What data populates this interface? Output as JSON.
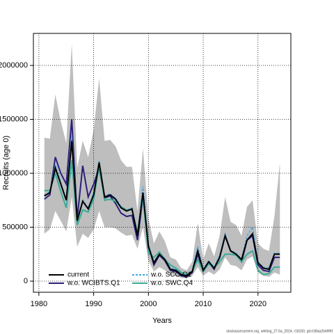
{
  "chart_data": {
    "type": "line",
    "x_label": "Years",
    "y_label": "Recruits (age 0)",
    "footer": "stockassessment.org, whiting_27.6a_2024, r18150, git:e38aa2b49f6f",
    "x": [
      1981,
      1982,
      1983,
      1984,
      1985,
      1986,
      1987,
      1988,
      1989,
      1990,
      1991,
      1992,
      1993,
      1994,
      1995,
      1996,
      1997,
      1998,
      1999,
      2000,
      2001,
      2002,
      2003,
      2004,
      2005,
      2006,
      2007,
      2008,
      2009,
      2010,
      2011,
      2012,
      2013,
      2014,
      2015,
      2016,
      2017,
      2018,
      2019,
      2020,
      2021,
      2022,
      2023,
      2024
    ],
    "band": {
      "color": "#bebebe",
      "upper": [
        1330000,
        1320000,
        1730000,
        1480000,
        1280000,
        2200000,
        1050000,
        1300000,
        1150000,
        1400000,
        1880000,
        1300000,
        1310000,
        1250000,
        1120000,
        1060000,
        1060000,
        650000,
        1230000,
        580000,
        350000,
        460000,
        370000,
        220000,
        200000,
        120000,
        100000,
        180000,
        540000,
        200000,
        350000,
        230000,
        420000,
        780000,
        550000,
        520000,
        420000,
        690000,
        750000,
        350000,
        300000,
        280000,
        600000,
        1100000
      ],
      "lower": [
        440000,
        480000,
        650000,
        560000,
        460000,
        780000,
        320000,
        440000,
        400000,
        480000,
        650000,
        500000,
        500000,
        490000,
        450000,
        420000,
        430000,
        300000,
        500000,
        190000,
        90000,
        130000,
        100000,
        60000,
        50000,
        30000,
        25000,
        50000,
        130000,
        50000,
        90000,
        60000,
        110000,
        220000,
        150000,
        140000,
        100000,
        200000,
        230000,
        80000,
        50000,
        40000,
        80000,
        60000
      ]
    },
    "series": [
      {
        "name": "current",
        "color": "#000000",
        "dash": false,
        "values": [
          790000,
          820000,
          1050000,
          900000,
          750000,
          1300000,
          560000,
          740000,
          670000,
          800000,
          1100000,
          780000,
          800000,
          760000,
          680000,
          650000,
          670000,
          420000,
          820000,
          320000,
          170000,
          250000,
          200000,
          110000,
          100000,
          60000,
          50000,
          90000,
          280000,
          100000,
          180000,
          120000,
          220000,
          420000,
          280000,
          250000,
          200000,
          380000,
          440000,
          170000,
          120000,
          110000,
          250000,
          250000
        ]
      },
      {
        "name": "w.o. WCIBTS.Q1",
        "color": "#2b1f7a",
        "dash": false,
        "values": [
          760000,
          800000,
          1150000,
          1000000,
          900000,
          1500000,
          580000,
          1070000,
          780000,
          900000,
          1050000,
          770000,
          790000,
          720000,
          630000,
          600000,
          610000,
          380000,
          780000,
          330000,
          150000,
          240000,
          190000,
          100000,
          90000,
          50000,
          40000,
          80000,
          250000,
          90000,
          170000,
          110000,
          220000,
          420000,
          280000,
          250000,
          180000,
          380000,
          420000,
          150000,
          100000,
          90000,
          220000,
          220000
        ]
      },
      {
        "name": "w.o. SCO.Q1",
        "color": "#3fa6e6",
        "dash": true,
        "values": [
          800000,
          830000,
          1080000,
          920000,
          760000,
          1350000,
          570000,
          760000,
          680000,
          820000,
          1120000,
          790000,
          810000,
          770000,
          690000,
          660000,
          680000,
          430000,
          880000,
          340000,
          180000,
          260000,
          210000,
          120000,
          110000,
          65000,
          55000,
          100000,
          320000,
          110000,
          190000,
          130000,
          240000,
          440000,
          290000,
          260000,
          210000,
          420000,
          500000,
          180000,
          130000,
          120000,
          260000,
          260000
        ]
      },
      {
        "name": "w.o. SWC.Q4",
        "color": "#3aaa98",
        "dash": false,
        "values": [
          840000,
          840000,
          1000000,
          830000,
          680000,
          1120000,
          520000,
          660000,
          640000,
          760000,
          1070000,
          750000,
          760000,
          740000,
          690000,
          660000,
          660000,
          450000,
          780000,
          260000,
          220000,
          270000,
          200000,
          150000,
          120000,
          80000,
          60000,
          90000,
          200000,
          90000,
          160000,
          120000,
          180000,
          250000,
          250000,
          240000,
          180000,
          250000,
          280000,
          100000,
          60000,
          70000,
          130000,
          130000
        ]
      }
    ],
    "legend": "bottom-left",
    "grid": true,
    "xlim": [
      1979,
      2026
    ],
    "xticks": [
      1980,
      1990,
      2000,
      2010,
      2020
    ],
    "ylim": [
      -103000,
      2297000
    ],
    "yticks": [
      0,
      500000,
      1000000,
      1500000,
      2000000
    ]
  }
}
